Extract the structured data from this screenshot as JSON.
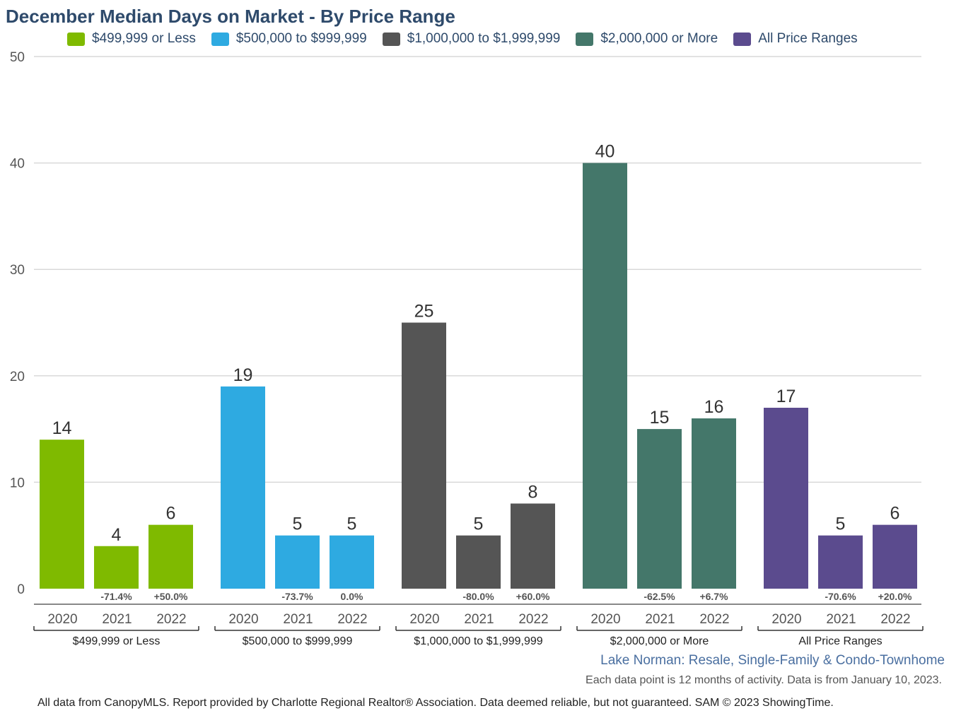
{
  "chart_data": {
    "type": "bar",
    "title": "December Median Days on Market - By Price Range",
    "ylim": [
      0,
      50
    ],
    "yticks": [
      0,
      10,
      20,
      30,
      40,
      50
    ],
    "grid": true,
    "legend_position": "top",
    "years": [
      "2020",
      "2021",
      "2022"
    ],
    "groups": [
      {
        "name": "$499,999 or Less",
        "color": "#7fba00",
        "values": [
          14,
          4,
          6
        ],
        "changes": [
          "",
          "-71.4%",
          "+50.0%"
        ]
      },
      {
        "name": "$500,000 to $999,999",
        "color": "#2eaae1",
        "values": [
          19,
          5,
          5
        ],
        "changes": [
          "",
          "-73.7%",
          "0.0%"
        ]
      },
      {
        "name": "$1,000,000 to $1,999,999",
        "color": "#555555",
        "values": [
          25,
          5,
          8
        ],
        "changes": [
          "",
          "-80.0%",
          "+60.0%"
        ]
      },
      {
        "name": "$2,000,000 or More",
        "color": "#44776a",
        "values": [
          40,
          15,
          16
        ],
        "changes": [
          "",
          "-62.5%",
          "+6.7%"
        ]
      },
      {
        "name": "All Price Ranges",
        "color": "#5b4b8e",
        "values": [
          17,
          5,
          6
        ],
        "changes": [
          "",
          "-70.6%",
          "+20.0%"
        ]
      }
    ]
  },
  "footer": {
    "subtitle": "Lake Norman: Resale, Single-Family & Condo-Townhome",
    "note": "Each data point is 12 months of activity. Data is from January 10, 2023.",
    "disclaimer": "All data from CanopyMLS. Report provided by Charlotte Regional Realtor® Association. Data deemed reliable, but not guaranteed. SAM © 2023 ShowingTime."
  }
}
